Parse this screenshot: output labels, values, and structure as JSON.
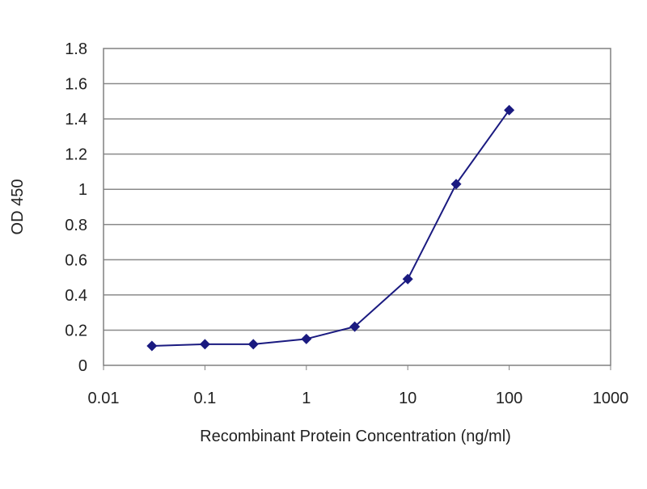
{
  "chart_data": {
    "type": "line",
    "title": "",
    "xlabel": "Recombinant Protein Concentration (ng/ml)",
    "ylabel": "OD 450",
    "x_scale": "log",
    "xlim": [
      0.01,
      1000
    ],
    "ylim": [
      0,
      1.8
    ],
    "x_ticks": [
      0.01,
      0.1,
      1,
      10,
      100,
      1000
    ],
    "x_tick_labels": [
      "0.01",
      "0.1",
      "1",
      "10",
      "100",
      "1000"
    ],
    "y_ticks": [
      0,
      0.2,
      0.4,
      0.6,
      0.8,
      1,
      1.2,
      1.4,
      1.6,
      1.8
    ],
    "y_tick_labels": [
      "0",
      "0.2",
      "0.4",
      "0.6",
      "0.8",
      "1",
      "1.2",
      "1.4",
      "1.6",
      "1.8"
    ],
    "grid": "horizontal",
    "legend": "none",
    "series": [
      {
        "color": "#1a1a80",
        "marker": "diamond",
        "x": [
          0.03,
          0.1,
          0.3,
          1,
          3,
          10,
          30,
          100
        ],
        "y": [
          0.11,
          0.12,
          0.12,
          0.15,
          0.22,
          0.49,
          1.03,
          1.45
        ]
      }
    ]
  }
}
